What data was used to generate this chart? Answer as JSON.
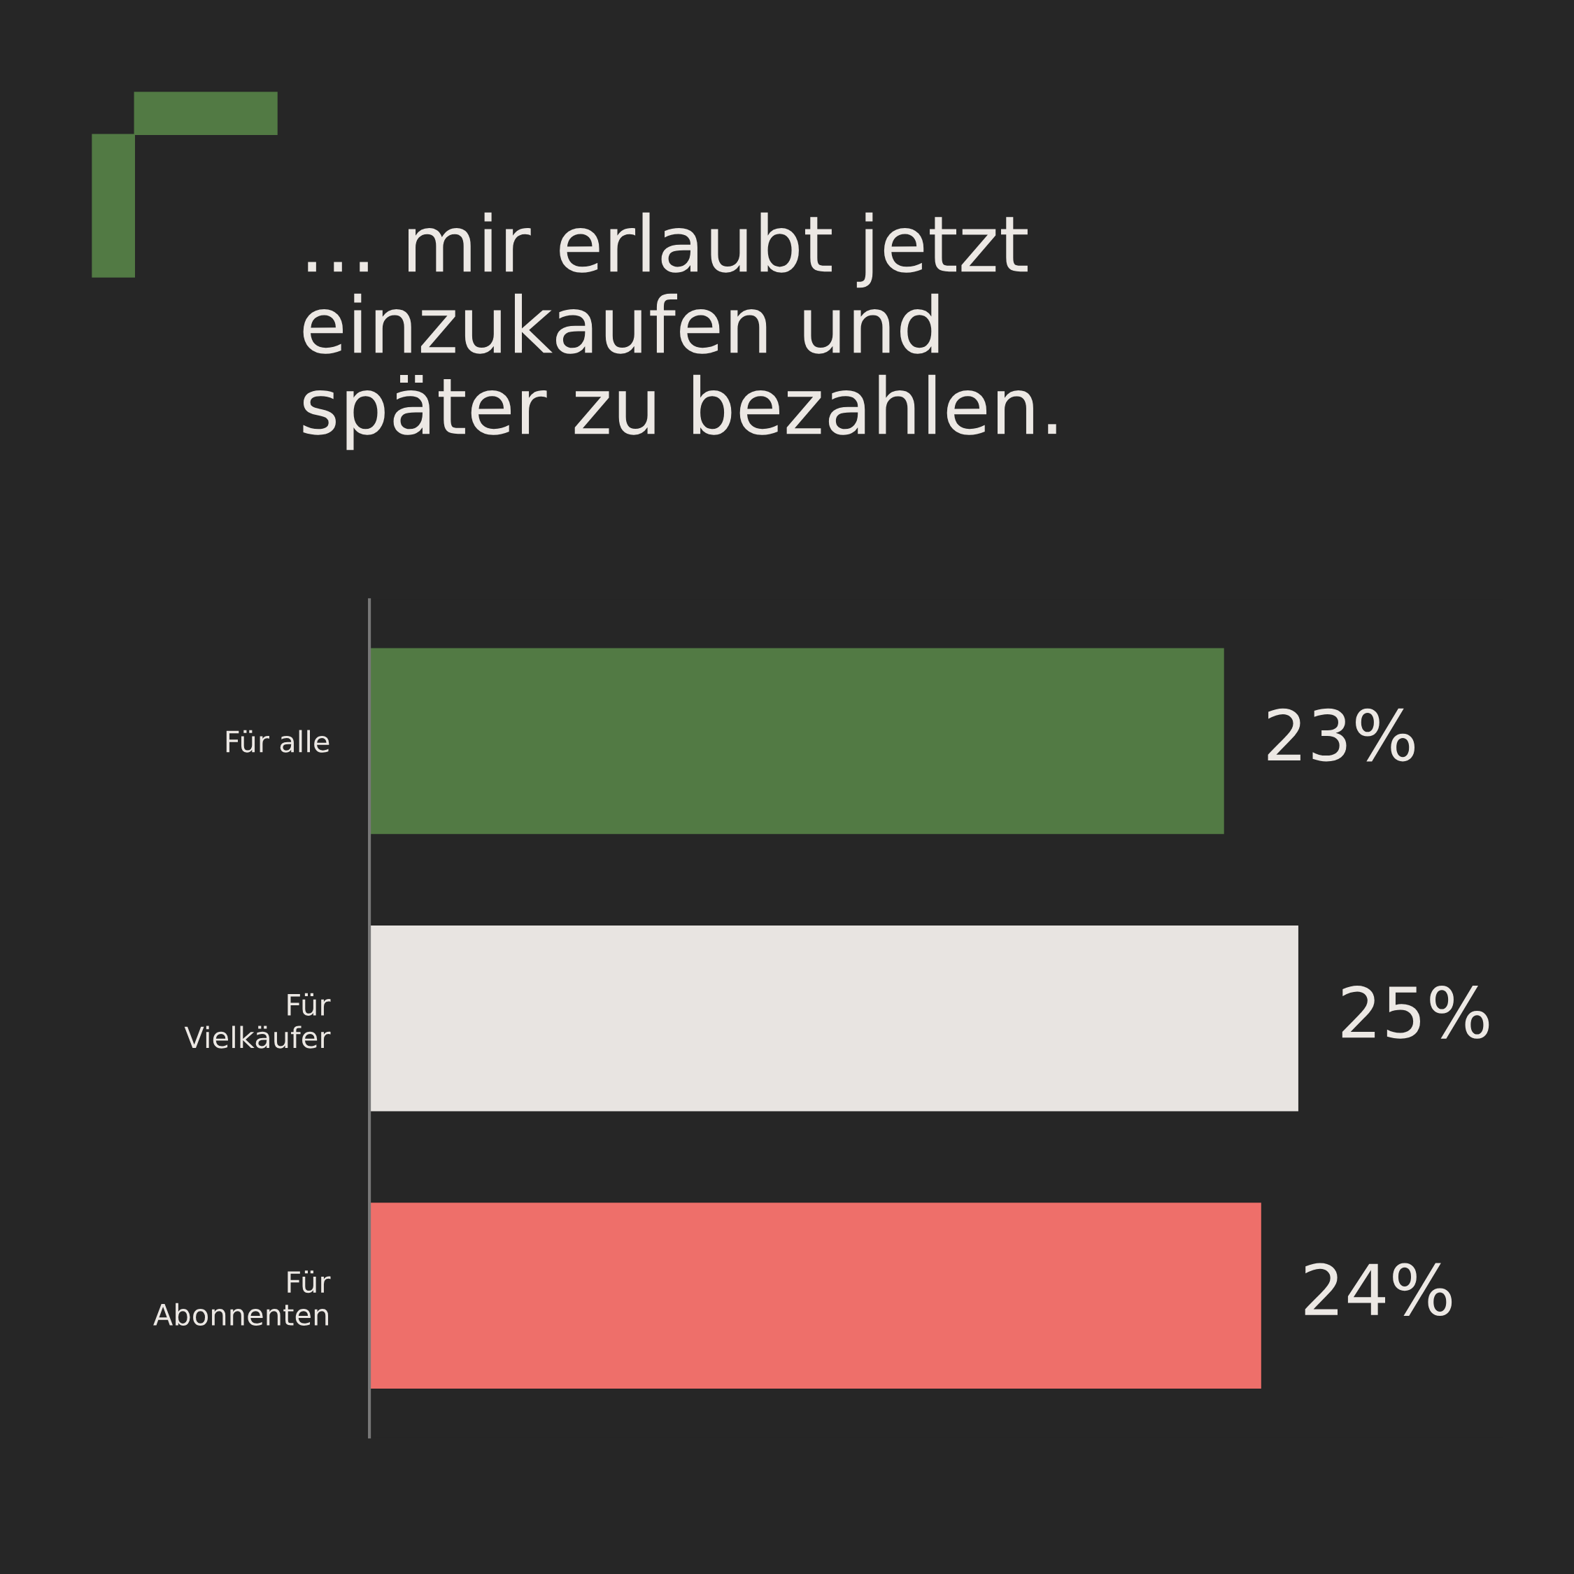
{
  "chart_data": {
    "type": "bar",
    "orientation": "horizontal",
    "title": "… mir erlaubt jetzt\neinzukaufen und\nspäter zu bezahlen.",
    "categories": [
      "Für alle",
      "Für\nVielkäufer",
      "Für\nAbonnenten"
    ],
    "values": [
      23,
      25,
      24
    ],
    "colors": [
      "#527a44",
      "#e8e4e1",
      "#ee6f6a"
    ],
    "value_labels": [
      "23%",
      "25%",
      "24%"
    ],
    "tick_labels": "y"
  }
}
